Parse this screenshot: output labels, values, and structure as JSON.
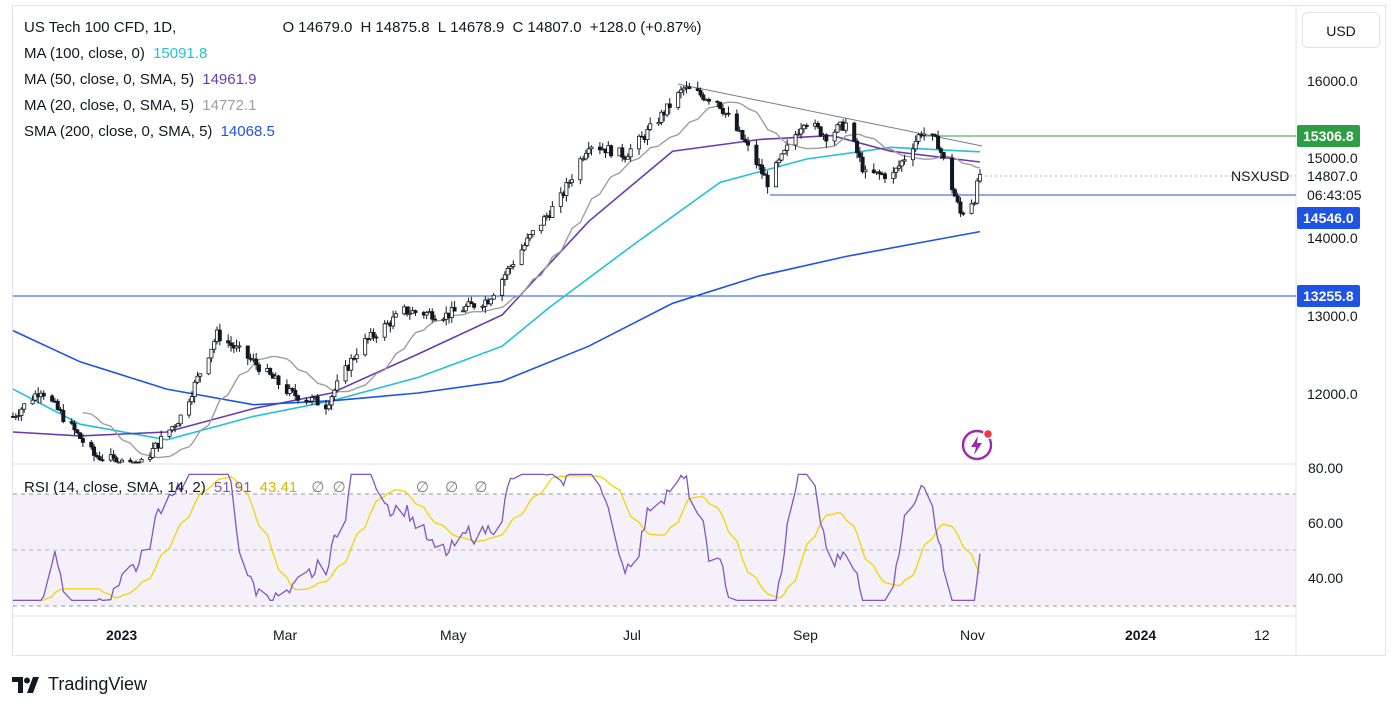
{
  "header": {
    "symbol_title": "US Tech 100 CFD, 1D,",
    "ohlc": [
      {
        "k": "O",
        "v": "14679.0"
      },
      {
        "k": "H",
        "v": "14875.8"
      },
      {
        "k": "L",
        "v": "14678.9"
      },
      {
        "k": "C",
        "v": "14807.0"
      }
    ],
    "change": "+128.0 (+0.87%)"
  },
  "indicators": [
    {
      "label": "MA (100, close, 0)",
      "value": "15091.8",
      "color": "#22c1d6"
    },
    {
      "label": "MA (50, close, 0, SMA, 5)",
      "value": "14961.9",
      "color": "#6a3bb0"
    },
    {
      "label": "MA (20, close, 0, SMA, 5)",
      "value": "14772.1",
      "color": "#9e9e9e"
    },
    {
      "label": "SMA (200, close, 0, SMA, 5)",
      "value": "14068.5",
      "color": "#1e53e5"
    }
  ],
  "rsi_legend": {
    "label": "RSI (14, close, SMA, 14, 2)",
    "rsi_value": "51.91",
    "rsi_color": "#7e57c2",
    "sma_value": "43.41",
    "sma_color": "#f5d300",
    "extras": [
      "∅",
      "∅",
      "∅",
      "∅",
      "∅"
    ]
  },
  "currency": "USD",
  "price_axis": [
    "16000.0",
    "15000.0",
    "14000.0",
    "13000.0",
    "12000.0"
  ],
  "rsi_axis": [
    "80.00",
    "60.00",
    "40.00"
  ],
  "time_axis": [
    "2023",
    "Mar",
    "May",
    "Jul",
    "Sep",
    "Nov",
    "2024",
    "12"
  ],
  "price_tags": {
    "resistance": {
      "value": "15306.8",
      "bg": "#2e9e44",
      "fg": "#ffffff"
    },
    "current": {
      "symbol": "NSXUSD",
      "value": "14807.0",
      "countdown": "06:43:05"
    },
    "support": {
      "value": "14546.0",
      "bg": "#1e53e5",
      "fg": "#ffffff"
    },
    "low_level": {
      "value": "13255.8",
      "bg": "#1e53e5",
      "fg": "#ffffff"
    }
  },
  "brand": {
    "name": "TradingView"
  },
  "chart_data": {
    "type": "candlestick",
    "title": "US Tech 100 CFD, 1D",
    "y_range": [
      11200,
      16600
    ],
    "series": [
      {
        "name": "MA (100, close, 0)",
        "color": "#22c1d6",
        "points": [
          [
            "2022-11-21",
            12050
          ],
          [
            "2022-12-15",
            11600
          ],
          [
            "2023-01-15",
            11400
          ],
          [
            "2023-02-15",
            11700
          ],
          [
            "2023-03-15",
            11900
          ],
          [
            "2023-04-15",
            12200
          ],
          [
            "2023-05-15",
            12600
          ],
          [
            "2023-06-01",
            13100
          ],
          [
            "2023-07-01",
            13900
          ],
          [
            "2023-08-01",
            14700
          ],
          [
            "2023-09-01",
            15000
          ],
          [
            "2023-10-01",
            15150
          ],
          [
            "2023-11-02",
            15092
          ]
        ]
      },
      {
        "name": "MA (50, close, 0, SMA, 5)",
        "color": "#6a3bb0",
        "points": [
          [
            "2022-11-21",
            11500
          ],
          [
            "2022-12-15",
            11450
          ],
          [
            "2023-01-15",
            11500
          ],
          [
            "2023-02-15",
            11800
          ],
          [
            "2023-03-15",
            12000
          ],
          [
            "2023-04-15",
            12500
          ],
          [
            "2023-05-15",
            13000
          ],
          [
            "2023-06-15",
            14200
          ],
          [
            "2023-07-15",
            15100
          ],
          [
            "2023-08-15",
            15250
          ],
          [
            "2023-09-10",
            15300
          ],
          [
            "2023-10-01",
            15100
          ],
          [
            "2023-11-02",
            14962
          ]
        ]
      },
      {
        "name": "SMA (200, close, 0, SMA, 5)",
        "color": "#1e53e5",
        "points": [
          [
            "2022-11-21",
            12800
          ],
          [
            "2022-12-15",
            12400
          ],
          [
            "2023-01-15",
            12050
          ],
          [
            "2023-02-15",
            11850
          ],
          [
            "2023-03-15",
            11900
          ],
          [
            "2023-04-15",
            12000
          ],
          [
            "2023-05-15",
            12150
          ],
          [
            "2023-06-15",
            12600
          ],
          [
            "2023-07-15",
            13150
          ],
          [
            "2023-08-15",
            13500
          ],
          [
            "2023-09-15",
            13750
          ],
          [
            "2023-10-15",
            13950
          ],
          [
            "2023-11-02",
            14069
          ]
        ]
      }
    ],
    "levels": [
      {
        "label": "15306.8",
        "value": 15306.8
      },
      {
        "label": "14546.0",
        "value": 14546.0
      },
      {
        "label": "13255.8",
        "value": 13255.8
      }
    ],
    "rsi": {
      "range": [
        25,
        85
      ],
      "bands": [
        70,
        50,
        30
      ]
    }
  }
}
